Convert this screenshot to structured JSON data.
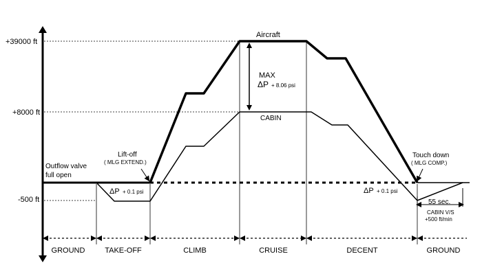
{
  "altitude_labels": {
    "cruise": "+39000 ft",
    "cabin_max": "+8000 ft",
    "below_ground": "-500  ft"
  },
  "curve_labels": {
    "aircraft": "Aircraft",
    "cabin": "CABIN",
    "max": "MAX",
    "max_dp_symbol": "ΔP",
    "max_dp_value": "+ 8.06 psi"
  },
  "annotations": {
    "outflow_line1": "Outflow valve",
    "outflow_line2": "full open",
    "liftoff_line1": "Lift-off",
    "liftoff_line2": "( MLG EXTEND.)",
    "takeoff_dp_symbol": "ΔP",
    "takeoff_dp_value": "+ 0.1 psi",
    "touchdown_line1": "Touch down",
    "touchdown_line2": "( MLG COMP.)",
    "landing_dp_symbol": "ΔP",
    "landing_dp_value": "+ 0.1 psi",
    "time_55": "55 sec.",
    "cabin_vs_line1": "CABIN V/S",
    "cabin_vs_line2": "+500 ft/min"
  },
  "phases": [
    "GROUND",
    "TAKE-OFF",
    "CLIMB",
    "CRUISE",
    "DECENT",
    "GROUND"
  ]
}
